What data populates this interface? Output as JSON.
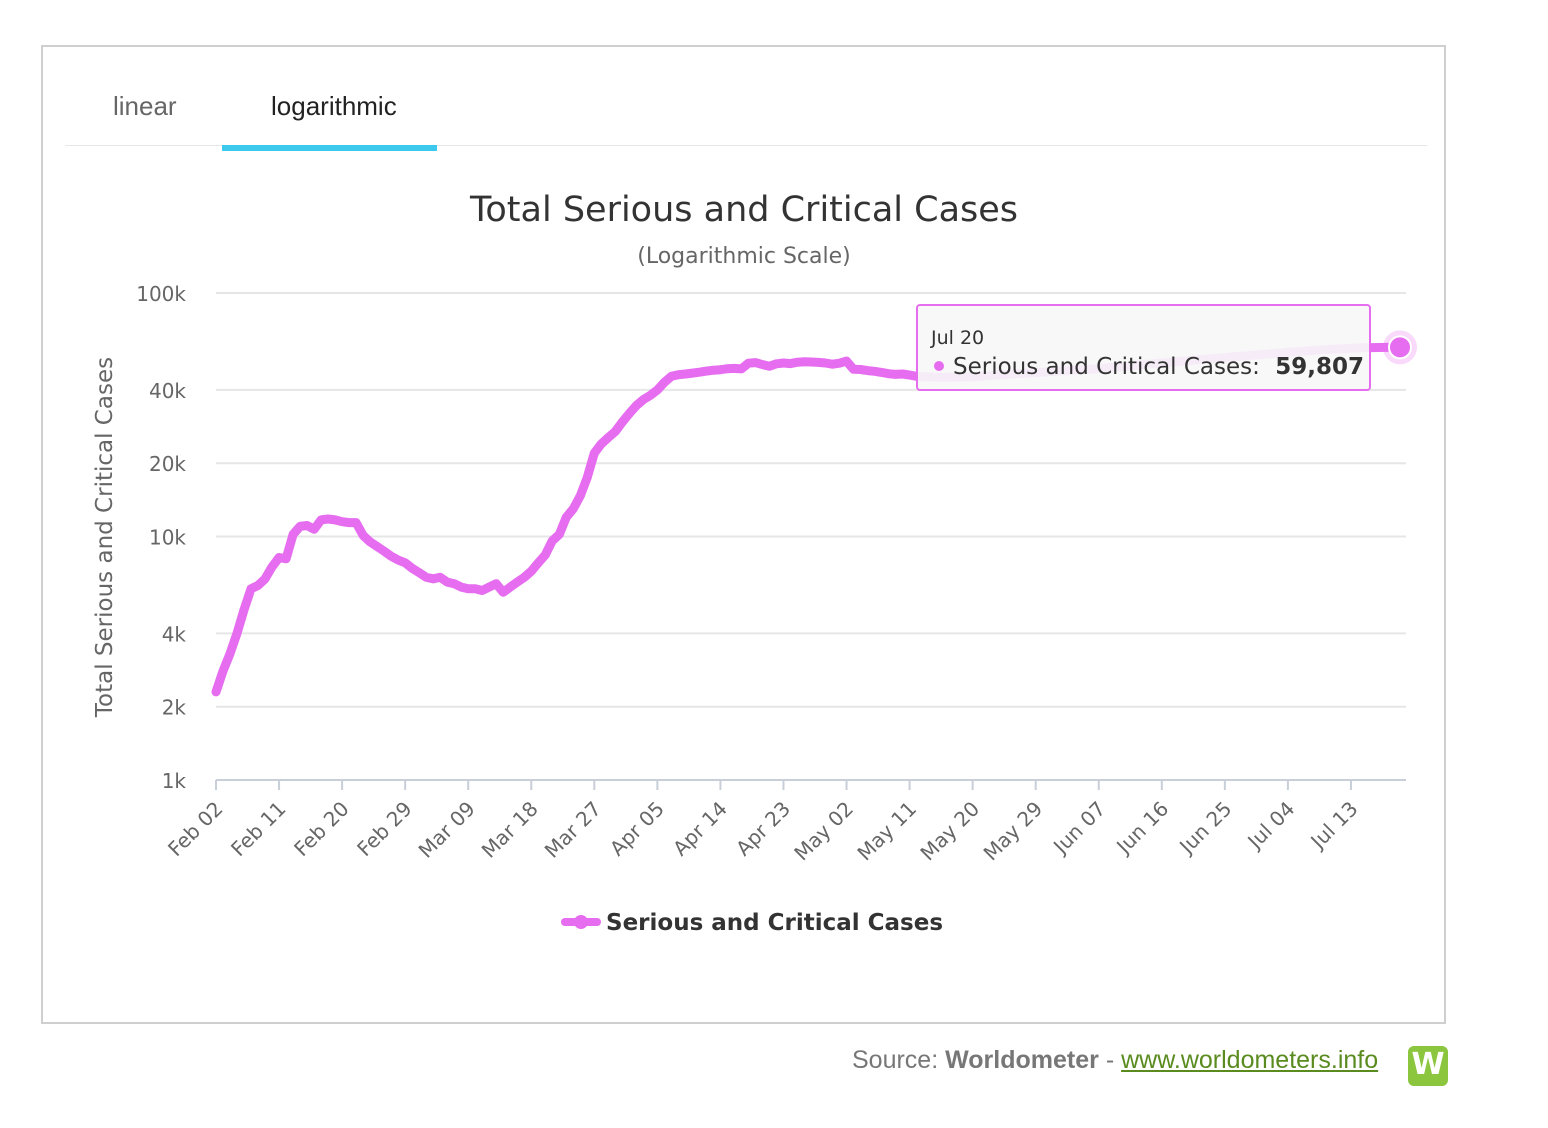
{
  "tabs": [
    {
      "label": "linear",
      "active": false
    },
    {
      "label": "logarithmic",
      "active": true
    }
  ],
  "accent_color": "#3dc8ee",
  "series_color": "#e66cf0",
  "chart_data": {
    "type": "line",
    "title": "Total Serious and Critical Cases",
    "subtitle": "(Logarithmic Scale)",
    "ylabel": "Total Serious and Critical Cases",
    "xlabel": "",
    "yscale": "log",
    "ylim": [
      1000,
      100000
    ],
    "yticks": [
      1000,
      2000,
      4000,
      10000,
      20000,
      40000,
      100000
    ],
    "ytick_labels": [
      "1k",
      "2k",
      "4k",
      "10k",
      "20k",
      "40k",
      "100k"
    ],
    "xlim": [
      "Feb 02",
      "Jul 20"
    ],
    "xtick_labels": [
      "Feb 02",
      "Feb 11",
      "Feb 20",
      "Feb 29",
      "Mar 09",
      "Mar 18",
      "Mar 27",
      "Apr 05",
      "Apr 14",
      "Apr 23",
      "May 02",
      "May 11",
      "May 20",
      "May 29",
      "Jun 07",
      "Jun 16",
      "Jun 25",
      "Jul 04",
      "Jul 13"
    ],
    "grid": true,
    "legend": "bottom-center",
    "series": [
      {
        "name": "Serious and Critical Cases",
        "points": [
          [
            "Feb 02",
            2300
          ],
          [
            "Feb 03",
            2800
          ],
          [
            "Feb 04",
            3300
          ],
          [
            "Feb 05",
            4000
          ],
          [
            "Feb 06",
            5000
          ],
          [
            "Feb 07",
            6100
          ],
          [
            "Feb 08",
            6300
          ],
          [
            "Feb 09",
            6700
          ],
          [
            "Feb 10",
            7500
          ],
          [
            "Feb 11",
            8200
          ],
          [
            "Feb 12",
            8100
          ],
          [
            "Feb 13",
            10200
          ],
          [
            "Feb 14",
            11000
          ],
          [
            "Feb 15",
            11100
          ],
          [
            "Feb 16",
            10700
          ],
          [
            "Feb 17",
            11700
          ],
          [
            "Feb 18",
            11800
          ],
          [
            "Feb 19",
            11700
          ],
          [
            "Feb 20",
            11500
          ],
          [
            "Feb 21",
            11400
          ],
          [
            "Feb 22",
            11400
          ],
          [
            "Feb 23",
            10100
          ],
          [
            "Feb 24",
            9500
          ],
          [
            "Feb 25",
            9100
          ],
          [
            "Feb 26",
            8700
          ],
          [
            "Feb 27",
            8300
          ],
          [
            "Feb 28",
            8000
          ],
          [
            "Feb 29",
            7800
          ],
          [
            "Mar 01",
            7400
          ],
          [
            "Mar 02",
            7100
          ],
          [
            "Mar 03",
            6800
          ],
          [
            "Mar 04",
            6700
          ],
          [
            "Mar 05",
            6800
          ],
          [
            "Mar 06",
            6500
          ],
          [
            "Mar 07",
            6400
          ],
          [
            "Mar 08",
            6200
          ],
          [
            "Mar 09",
            6100
          ],
          [
            "Mar 10",
            6100
          ],
          [
            "Mar 11",
            6000
          ],
          [
            "Mar 12",
            6200
          ],
          [
            "Mar 13",
            6400
          ],
          [
            "Mar 14",
            5900
          ],
          [
            "Mar 15",
            6200
          ],
          [
            "Mar 16",
            6500
          ],
          [
            "Mar 17",
            6800
          ],
          [
            "Mar 18",
            7200
          ],
          [
            "Mar 19",
            7800
          ],
          [
            "Mar 20",
            8400
          ],
          [
            "Mar 21",
            9600
          ],
          [
            "Mar 22",
            10200
          ],
          [
            "Mar 23",
            12000
          ],
          [
            "Mar 24",
            13000
          ],
          [
            "Mar 25",
            14700
          ],
          [
            "Mar 26",
            17500
          ],
          [
            "Mar 27",
            22000
          ],
          [
            "Mar 28",
            24000
          ],
          [
            "Mar 29",
            25500
          ],
          [
            "Mar 30",
            27000
          ],
          [
            "Mar 31",
            29500
          ],
          [
            "Apr 01",
            32000
          ],
          [
            "Apr 02",
            34500
          ],
          [
            "Apr 03",
            36500
          ],
          [
            "Apr 04",
            38000
          ],
          [
            "Apr 05",
            40000
          ],
          [
            "Apr 06",
            43000
          ],
          [
            "Apr 07",
            45500
          ],
          [
            "Apr 08",
            46200
          ],
          [
            "Apr 09",
            46500
          ],
          [
            "Apr 10",
            46900
          ],
          [
            "Apr 11",
            47300
          ],
          [
            "Apr 12",
            47800
          ],
          [
            "Apr 13",
            48200
          ],
          [
            "Apr 14",
            48400
          ],
          [
            "Apr 15",
            48900
          ],
          [
            "Apr 16",
            49000
          ],
          [
            "Apr 17",
            48800
          ],
          [
            "Apr 18",
            51500
          ],
          [
            "Apr 19",
            51800
          ],
          [
            "Apr 20",
            50800
          ],
          [
            "Apr 21",
            50000
          ],
          [
            "Apr 22",
            51200
          ],
          [
            "Apr 23",
            51600
          ],
          [
            "Apr 24",
            51300
          ],
          [
            "Apr 25",
            52000
          ],
          [
            "Apr 26",
            52200
          ],
          [
            "Apr 27",
            52100
          ],
          [
            "Apr 28",
            51900
          ],
          [
            "Apr 29",
            51600
          ],
          [
            "Apr 30",
            51000
          ],
          [
            "May 01",
            51500
          ],
          [
            "May 02",
            52500
          ],
          [
            "May 03",
            48600
          ],
          [
            "May 04",
            48500
          ],
          [
            "May 05",
            48000
          ],
          [
            "May 06",
            47700
          ],
          [
            "May 07",
            47200
          ],
          [
            "May 08",
            46600
          ],
          [
            "May 09",
            46300
          ],
          [
            "May 10",
            46500
          ],
          [
            "May 11",
            46000
          ],
          [
            "May 12",
            45500
          ],
          [
            "May 13",
            45300
          ],
          [
            "May 14",
            45200
          ],
          [
            "May 15",
            45100
          ],
          [
            "May 16",
            45000
          ],
          [
            "May 17",
            45050
          ],
          [
            "May 18",
            45150
          ],
          [
            "May 19",
            45200
          ],
          [
            "May 20",
            45300
          ],
          [
            "May 21",
            45500
          ],
          [
            "May 22",
            45700
          ],
          [
            "May 23",
            45900
          ],
          [
            "May 24",
            46100
          ],
          [
            "May 25",
            46300
          ],
          [
            "May 26",
            46500
          ],
          [
            "May 27",
            46700
          ],
          [
            "May 28",
            46900
          ],
          [
            "May 29",
            47100
          ],
          [
            "May 30",
            47300
          ],
          [
            "May 31",
            47500
          ],
          [
            "Jun 01",
            47700
          ],
          [
            "Jun 02",
            47900
          ],
          [
            "Jun 03",
            48100
          ],
          [
            "Jun 04",
            48300
          ],
          [
            "Jun 05",
            48500
          ],
          [
            "Jun 06",
            48700
          ],
          [
            "Jun 07",
            48900
          ],
          [
            "Jun 08",
            49200
          ],
          [
            "Jun 09",
            49500
          ],
          [
            "Jun 10",
            49800
          ],
          [
            "Jun 11",
            50100
          ],
          [
            "Jun 12",
            50400
          ],
          [
            "Jun 13",
            50700
          ],
          [
            "Jun 14",
            51000
          ],
          [
            "Jun 15",
            51300
          ],
          [
            "Jun 16",
            51600
          ],
          [
            "Jun 17",
            51900
          ],
          [
            "Jun 18",
            52200
          ],
          [
            "Jun 19",
            52500
          ],
          [
            "Jun 20",
            52800
          ],
          [
            "Jun 21",
            53100
          ],
          [
            "Jun 22",
            53400
          ],
          [
            "Jun 23",
            53700
          ],
          [
            "Jun 24",
            54000
          ],
          [
            "Jun 25",
            54300
          ],
          [
            "Jun 26",
            54600
          ],
          [
            "Jun 27",
            54900
          ],
          [
            "Jun 28",
            55200
          ],
          [
            "Jun 29",
            55500
          ],
          [
            "Jun 30",
            55800
          ],
          [
            "Jul 01",
            56100
          ],
          [
            "Jul 02",
            56400
          ],
          [
            "Jul 03",
            56700
          ],
          [
            "Jul 04",
            57000
          ],
          [
            "Jul 05",
            57300
          ],
          [
            "Jul 06",
            57600
          ],
          [
            "Jul 07",
            57900
          ],
          [
            "Jul 08",
            58150
          ],
          [
            "Jul 09",
            58400
          ],
          [
            "Jul 10",
            58650
          ],
          [
            "Jul 11",
            58900
          ],
          [
            "Jul 12",
            59100
          ],
          [
            "Jul 13",
            59300
          ],
          [
            "Jul 14",
            59450
          ],
          [
            "Jul 15",
            59550
          ],
          [
            "Jul 16",
            59650
          ],
          [
            "Jul 17",
            59720
          ],
          [
            "Jul 18",
            59770
          ],
          [
            "Jul 19",
            59790
          ],
          [
            "Jul 20",
            59807
          ]
        ]
      }
    ],
    "tooltip": {
      "date": "Jul 20",
      "series_label": "Serious and Critical Cases:",
      "value": "59,807"
    }
  },
  "source": {
    "prefix": "Source:",
    "brand": "Worldometer",
    "separator": "-",
    "link": "www.worldometers.info",
    "logo_letter": "W"
  }
}
